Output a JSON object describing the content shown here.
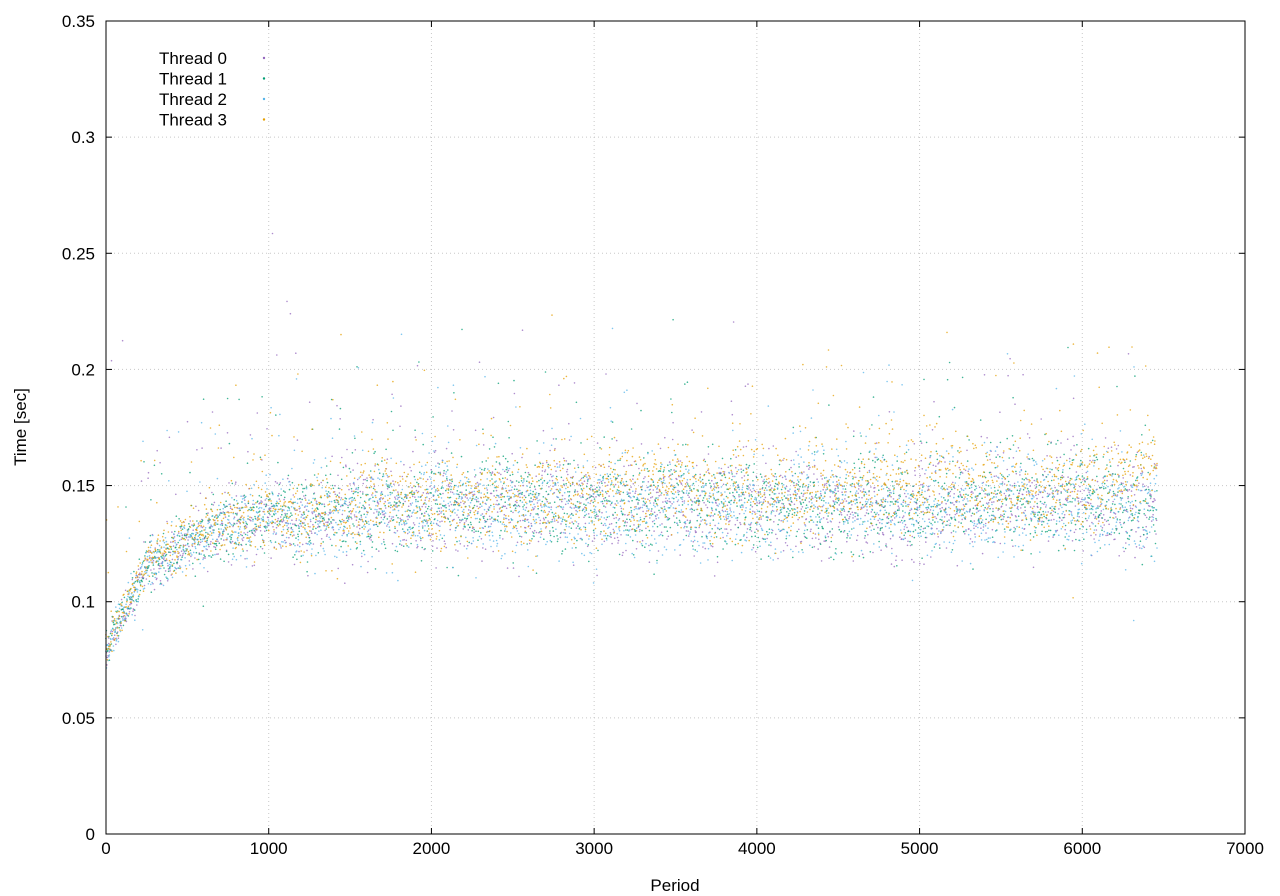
{
  "chart_data": {
    "type": "scatter",
    "title": "",
    "xlabel": "Period",
    "ylabel": "Time [sec]",
    "xlim": [
      0,
      7000
    ],
    "ylim": [
      0,
      0.35
    ],
    "x_ticks": [
      "0",
      "1000",
      "2000",
      "3000",
      "4000",
      "5000",
      "6000",
      "7000"
    ],
    "y_ticks": [
      "0",
      "0.05",
      "0.1",
      "0.15",
      "0.2",
      "0.25",
      "0.3",
      "0.35"
    ],
    "grid": true,
    "legend_position": "top-left",
    "x_range_observed": [
      0,
      6460
    ],
    "series": [
      {
        "name": "Thread 0",
        "color": "#9467bd",
        "marker": "dot",
        "x": [
          0,
          250,
          500,
          750,
          1000,
          1250,
          1500,
          2000,
          2500,
          3000,
          3500,
          4000,
          4500,
          5000,
          5500,
          6000,
          6450
        ],
        "y": [
          0.078,
          0.115,
          0.125,
          0.132,
          0.136,
          0.135,
          0.138,
          0.14,
          0.141,
          0.141,
          0.142,
          0.142,
          0.141,
          0.138,
          0.142,
          0.143,
          0.14
        ]
      },
      {
        "name": "Thread 1",
        "color": "#009e73",
        "marker": "dot",
        "x": [
          0,
          250,
          500,
          750,
          1000,
          1250,
          1500,
          2000,
          2500,
          3000,
          3500,
          4000,
          4500,
          5000,
          5500,
          6000,
          6450
        ],
        "y": [
          0.08,
          0.116,
          0.126,
          0.133,
          0.137,
          0.136,
          0.139,
          0.141,
          0.142,
          0.142,
          0.143,
          0.142,
          0.142,
          0.139,
          0.143,
          0.144,
          0.141
        ]
      },
      {
        "name": "Thread 2",
        "color": "#56b4e9",
        "marker": "dot",
        "x": [
          0,
          250,
          500,
          750,
          1000,
          1250,
          1500,
          2000,
          2500,
          3000,
          3500,
          4000,
          4500,
          5000,
          5500,
          6000,
          6450
        ],
        "y": [
          0.079,
          0.115,
          0.124,
          0.132,
          0.137,
          0.135,
          0.138,
          0.14,
          0.14,
          0.139,
          0.14,
          0.141,
          0.145,
          0.136,
          0.141,
          0.142,
          0.139
        ]
      },
      {
        "name": "Thread 3",
        "color": "#e69f00",
        "marker": "dot",
        "x": [
          0,
          250,
          500,
          750,
          1000,
          1250,
          1500,
          2000,
          2500,
          3000,
          3500,
          4000,
          4500,
          5000,
          5500,
          6000,
          6450
        ],
        "y": [
          0.081,
          0.117,
          0.127,
          0.134,
          0.138,
          0.137,
          0.14,
          0.143,
          0.144,
          0.146,
          0.152,
          0.145,
          0.146,
          0.152,
          0.147,
          0.15,
          0.158
        ]
      }
    ]
  }
}
